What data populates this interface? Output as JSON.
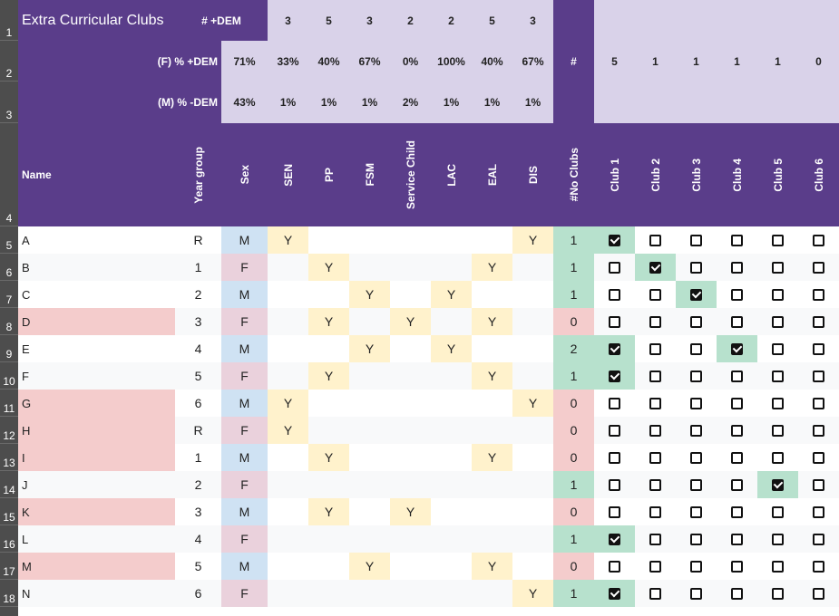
{
  "title": "Extra Curricular Clubs",
  "summary": {
    "row1_label": "# +DEM",
    "row2_label": "(F)  % +DEM",
    "row3_label": "(M)  % -DEM",
    "row1": [
      "",
      "3",
      "5",
      "3",
      "2",
      "2",
      "5",
      "3"
    ],
    "row2": [
      "71%",
      "33%",
      "40%",
      "67%",
      "0%",
      "100%",
      "40%",
      "67%"
    ],
    "row3": [
      "43%",
      "1%",
      "1%",
      "1%",
      "2%",
      "1%",
      "1%",
      "1%"
    ],
    "hash_label": "#",
    "club_counts": [
      "5",
      "1",
      "1",
      "1",
      "1",
      "0"
    ]
  },
  "headers": {
    "name": "Name",
    "columns": [
      "Year group",
      "Sex",
      "SEN",
      "PP",
      "FSM",
      "Service Child",
      "LAC",
      "EAL",
      "DIS",
      "#No Clubs"
    ],
    "clubs": [
      "Club 1",
      "Club 2",
      "Club 3",
      "Club 4",
      "Club 5",
      "Club 6"
    ]
  },
  "row_numbers": [
    "1",
    "2",
    "3",
    "4",
    "5",
    "6",
    "7",
    "8",
    "9",
    "10",
    "11",
    "12",
    "13",
    "14",
    "15",
    "16",
    "17",
    "18"
  ],
  "students": [
    {
      "name": "A",
      "year": "R",
      "sex": "M",
      "sen": "Y",
      "pp": "",
      "fsm": "",
      "svc": "",
      "lac": "",
      "eal": "",
      "dis": "Y",
      "no_clubs": "1",
      "clubs": [
        true,
        false,
        false,
        false,
        false,
        false
      ]
    },
    {
      "name": "B",
      "year": "1",
      "sex": "F",
      "sen": "",
      "pp": "Y",
      "fsm": "",
      "svc": "",
      "lac": "",
      "eal": "Y",
      "dis": "",
      "no_clubs": "1",
      "clubs": [
        false,
        true,
        false,
        false,
        false,
        false
      ]
    },
    {
      "name": "C",
      "year": "2",
      "sex": "M",
      "sen": "",
      "pp": "",
      "fsm": "Y",
      "svc": "",
      "lac": "Y",
      "eal": "",
      "dis": "",
      "no_clubs": "1",
      "clubs": [
        false,
        false,
        true,
        false,
        false,
        false
      ]
    },
    {
      "name": "D",
      "year": "3",
      "sex": "F",
      "sen": "",
      "pp": "Y",
      "fsm": "",
      "svc": "Y",
      "lac": "",
      "eal": "Y",
      "dis": "",
      "no_clubs": "0",
      "clubs": [
        false,
        false,
        false,
        false,
        false,
        false
      ]
    },
    {
      "name": "E",
      "year": "4",
      "sex": "M",
      "sen": "",
      "pp": "",
      "fsm": "Y",
      "svc": "",
      "lac": "Y",
      "eal": "",
      "dis": "",
      "no_clubs": "2",
      "clubs": [
        true,
        false,
        false,
        true,
        false,
        false
      ]
    },
    {
      "name": "F",
      "year": "5",
      "sex": "F",
      "sen": "",
      "pp": "Y",
      "fsm": "",
      "svc": "",
      "lac": "",
      "eal": "Y",
      "dis": "",
      "no_clubs": "1",
      "clubs": [
        true,
        false,
        false,
        false,
        false,
        false
      ]
    },
    {
      "name": "G",
      "year": "6",
      "sex": "M",
      "sen": "Y",
      "pp": "",
      "fsm": "",
      "svc": "",
      "lac": "",
      "eal": "",
      "dis": "Y",
      "no_clubs": "0",
      "clubs": [
        false,
        false,
        false,
        false,
        false,
        false
      ]
    },
    {
      "name": "H",
      "year": "R",
      "sex": "F",
      "sen": "Y",
      "pp": "",
      "fsm": "",
      "svc": "",
      "lac": "",
      "eal": "",
      "dis": "",
      "no_clubs": "0",
      "clubs": [
        false,
        false,
        false,
        false,
        false,
        false
      ]
    },
    {
      "name": "I",
      "year": "1",
      "sex": "M",
      "sen": "",
      "pp": "Y",
      "fsm": "",
      "svc": "",
      "lac": "",
      "eal": "Y",
      "dis": "",
      "no_clubs": "0",
      "clubs": [
        false,
        false,
        false,
        false,
        false,
        false
      ]
    },
    {
      "name": "J",
      "year": "2",
      "sex": "F",
      "sen": "",
      "pp": "",
      "fsm": "",
      "svc": "",
      "lac": "",
      "eal": "",
      "dis": "",
      "no_clubs": "1",
      "clubs": [
        false,
        false,
        false,
        false,
        true,
        false
      ]
    },
    {
      "name": "K",
      "year": "3",
      "sex": "M",
      "sen": "",
      "pp": "Y",
      "fsm": "",
      "svc": "Y",
      "lac": "",
      "eal": "",
      "dis": "",
      "no_clubs": "0",
      "clubs": [
        false,
        false,
        false,
        false,
        false,
        false
      ]
    },
    {
      "name": "L",
      "year": "4",
      "sex": "F",
      "sen": "",
      "pp": "",
      "fsm": "",
      "svc": "",
      "lac": "",
      "eal": "",
      "dis": "",
      "no_clubs": "1",
      "clubs": [
        true,
        false,
        false,
        false,
        false,
        false
      ]
    },
    {
      "name": "M",
      "year": "5",
      "sex": "M",
      "sen": "",
      "pp": "",
      "fsm": "Y",
      "svc": "",
      "lac": "",
      "eal": "Y",
      "dis": "",
      "no_clubs": "0",
      "clubs": [
        false,
        false,
        false,
        false,
        false,
        false
      ]
    },
    {
      "name": "N",
      "year": "6",
      "sex": "F",
      "sen": "",
      "pp": "",
      "fsm": "",
      "svc": "",
      "lac": "",
      "eal": "",
      "dis": "Y",
      "no_clubs": "1",
      "clubs": [
        true,
        false,
        false,
        false,
        false,
        false
      ]
    }
  ],
  "colors": {
    "purple": "#5a3d8a",
    "lavender": "#d9d2e9",
    "male": "#cfe2f3",
    "female": "#ead1dc",
    "flag": "#fff2cc",
    "zero_clubs": "#f4cccc",
    "has_clubs": "#b7e1cd",
    "checked": "#b7e1cd",
    "stripe": "#f8f9fa"
  }
}
